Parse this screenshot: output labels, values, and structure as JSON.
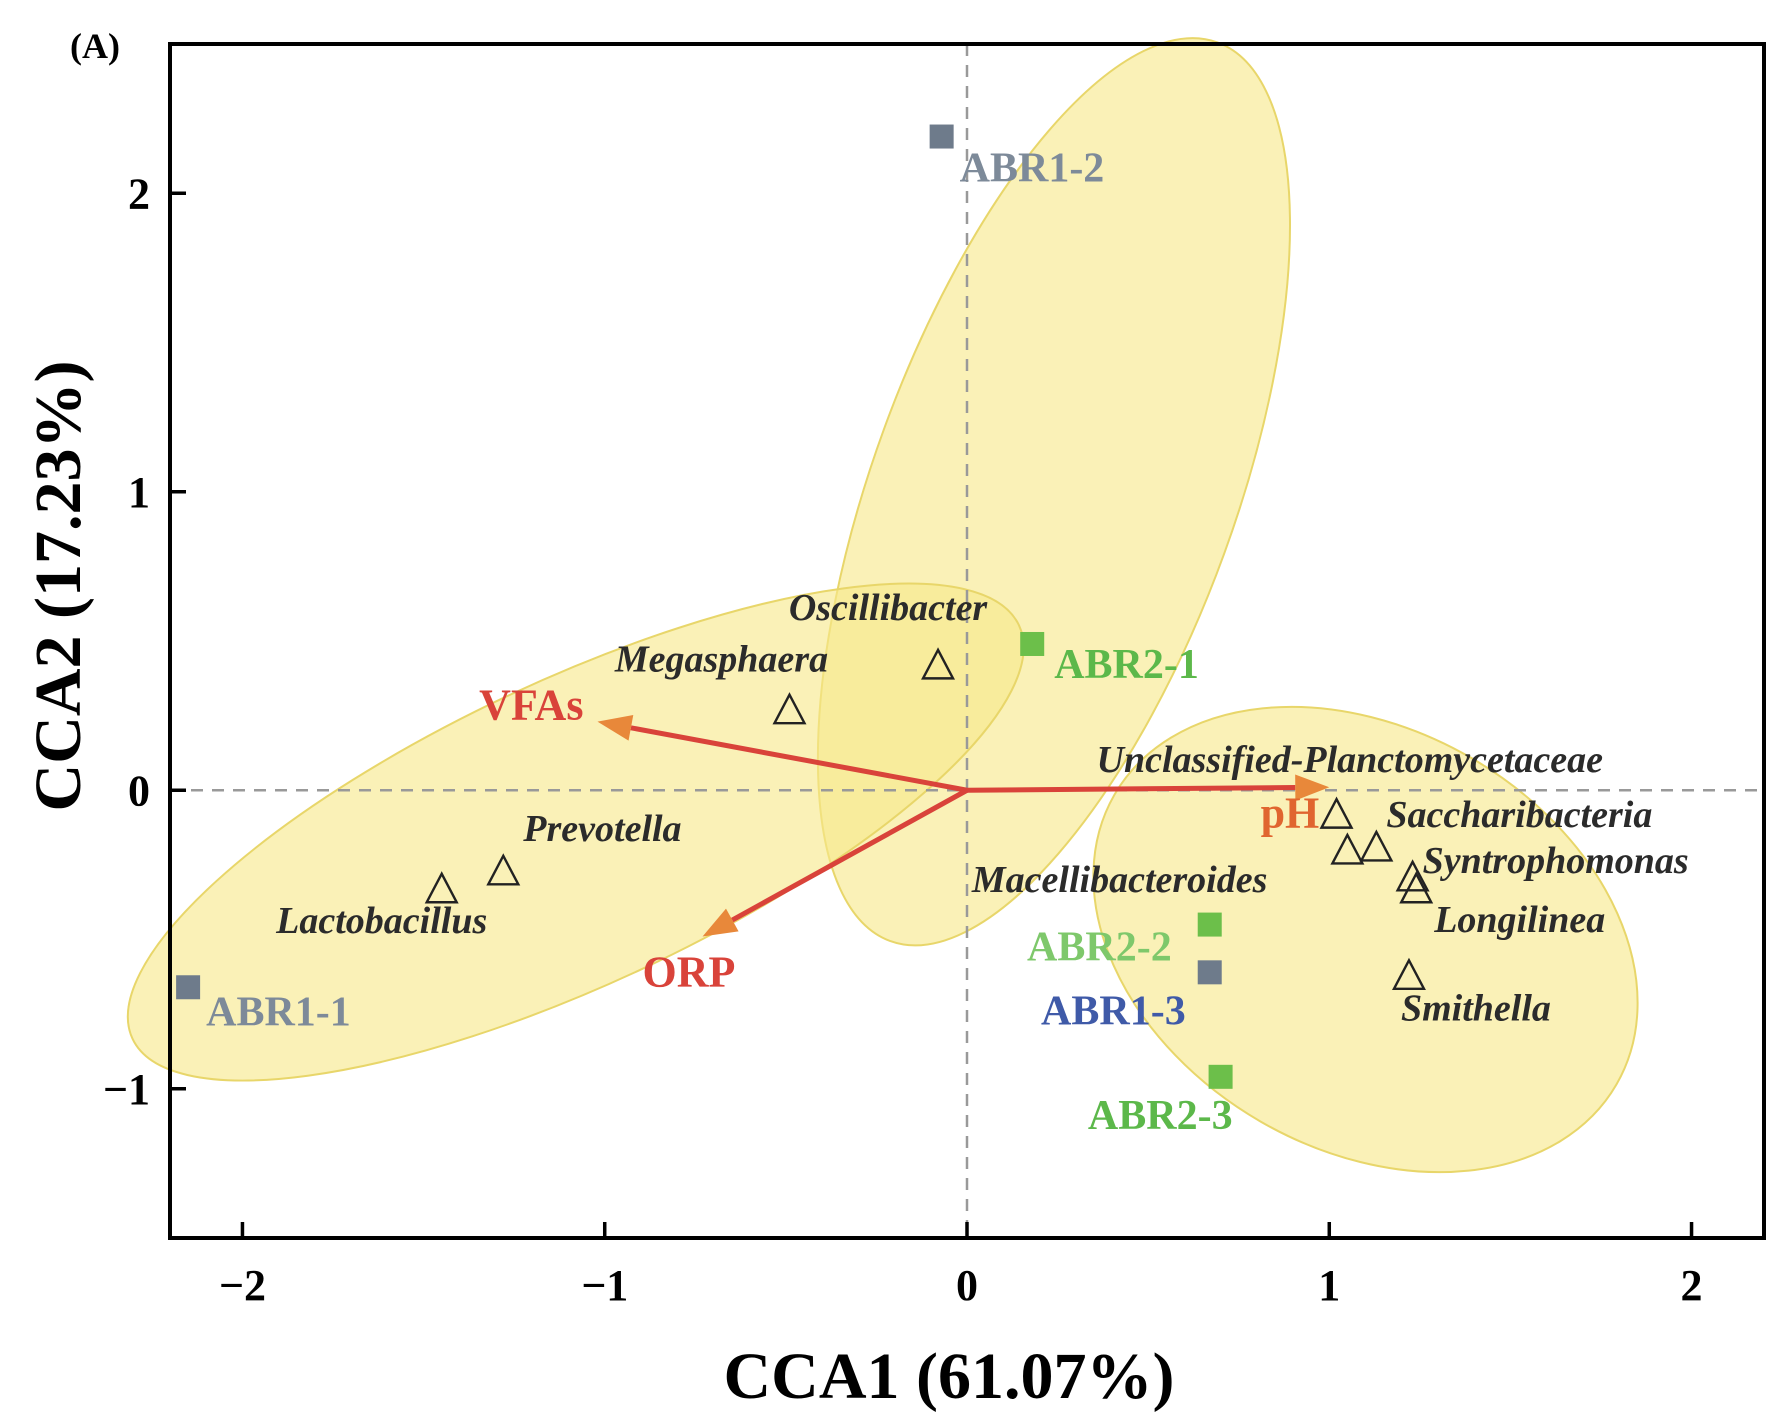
{
  "chart_data": {
    "type": "scatter",
    "panel_label": "(A)",
    "xlabel": "CCA1 (61.07%)",
    "ylabel": "CCA2 (17.23%)",
    "xlim": [
      -2.2,
      2.2
    ],
    "ylim": [
      -1.5,
      2.5
    ],
    "xticks": [
      {
        "value": -2,
        "label": "−2"
      },
      {
        "value": -1,
        "label": "−1"
      },
      {
        "value": 0,
        "label": "0"
      },
      {
        "value": 1,
        "label": "1"
      },
      {
        "value": 2,
        "label": "2"
      }
    ],
    "yticks": [
      {
        "value": -1,
        "label": "−1"
      },
      {
        "value": 0,
        "label": "0"
      },
      {
        "value": 1,
        "label": "1"
      },
      {
        "value": 2,
        "label": "2"
      }
    ],
    "reference_lines": {
      "x": 0,
      "y": 0,
      "style": "dashed"
    },
    "ellipses": [
      {
        "name": "group-abr1-2",
        "cx": 0.24,
        "cy": 1.0,
        "rx": 1.32,
        "ry": 0.5,
        "angle_deg": 70
      },
      {
        "name": "group-left",
        "cx": -1.08,
        "cy": -0.14,
        "rx": 1.35,
        "ry": 0.42,
        "angle_deg": 25
      },
      {
        "name": "group-right",
        "cx": 1.1,
        "cy": -0.5,
        "rx": 0.8,
        "ry": 0.58,
        "angle_deg": -30
      }
    ],
    "samples": [
      {
        "name": "ABR1-2",
        "x": -0.07,
        "y": 2.19,
        "color": "#6e7b8b",
        "label_color": "#7d8a99"
      },
      {
        "name": "ABR2-1",
        "x": 0.18,
        "y": 0.49,
        "color": "#6cbf4a",
        "label_color": "#5cb84a"
      },
      {
        "name": "ABR1-1",
        "x": -2.15,
        "y": -0.66,
        "color": "#6e7b8b",
        "label_color": "#7d8a99"
      },
      {
        "name": "ABR2-2",
        "x": 0.67,
        "y": -0.45,
        "color": "#6cbf4a",
        "label_color": "#7ec86b"
      },
      {
        "name": "ABR1-3",
        "x": 0.67,
        "y": -0.61,
        "color": "#6e7b8b",
        "label_color": "#3f5aa8"
      },
      {
        "name": "ABR2-3",
        "x": 0.7,
        "y": -0.96,
        "color": "#6cbf4a",
        "label_color": "#5cb84a"
      }
    ],
    "genera": [
      {
        "name": "Oscillibacter",
        "x": -0.08,
        "y": 0.42
      },
      {
        "name": "Megasphaera",
        "x": -0.49,
        "y": 0.27
      },
      {
        "name": "Prevotella",
        "x": -1.28,
        "y": -0.27
      },
      {
        "name": "Lactobacillus",
        "x": -1.45,
        "y": -0.33
      },
      {
        "name": "Unclassified-Planctomycetaceae",
        "x": 1.02,
        "y": -0.08
      },
      {
        "name": "Saccharibacteria",
        "x": 1.13,
        "y": -0.19
      },
      {
        "name": "Macellibacteroides",
        "x": 1.05,
        "y": -0.2
      },
      {
        "name": "Syntrophomonas",
        "x": 1.23,
        "y": -0.29
      },
      {
        "name": "Longilinea",
        "x": 1.24,
        "y": -0.33
      },
      {
        "name": "Smithella",
        "x": 1.22,
        "y": -0.62
      }
    ],
    "env_vectors": [
      {
        "name": "VFAs",
        "x": -1.02,
        "y": 0.23,
        "color": "#d9433a",
        "label_color": "#d9433a"
      },
      {
        "name": "pH",
        "x": 1.0,
        "y": 0.01,
        "color": "#d9433a",
        "label_color": "#e0652f"
      },
      {
        "name": "ORP",
        "x": -0.73,
        "y": -0.49,
        "color": "#d9433a",
        "label_color": "#d9433a"
      }
    ],
    "colors": {
      "ellipse_fill": "#f7e98a",
      "ellipse_stroke": "#e8d66a",
      "axis": "#000000",
      "reference_line": "#999999",
      "arrow_gradient_end": "#e8883a"
    }
  }
}
